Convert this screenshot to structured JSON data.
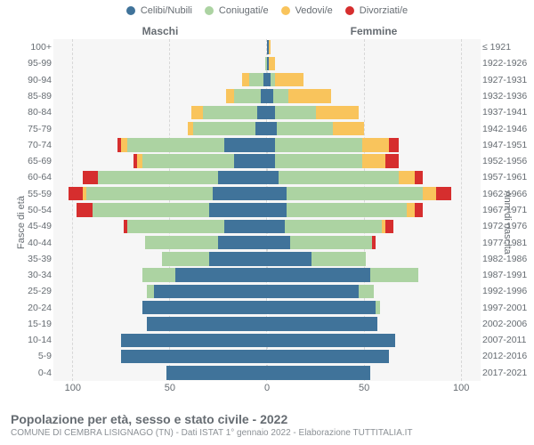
{
  "legend": [
    {
      "label": "Celibi/Nubili",
      "color": "#40739a"
    },
    {
      "label": "Coniugati/e",
      "color": "#acd3a2"
    },
    {
      "label": "Vedovi/e",
      "color": "#f9c45c"
    },
    {
      "label": "Divorziati/e",
      "color": "#d62e2e"
    }
  ],
  "sides": {
    "left": "Maschi",
    "right": "Femmine"
  },
  "yaxis_left_title": "Fasce di età",
  "yaxis_right_title": "Anni di nascita",
  "x_ticks_left": [
    100,
    50,
    0
  ],
  "x_ticks_right": [
    0,
    50,
    100
  ],
  "x_max": 110,
  "plot_bg": "#f6f6f6",
  "grid_color": "#d8d8d8",
  "text_color": "#666c72",
  "title": "Popolazione per età, sesso e stato civile - 2022",
  "subtitle": "COMUNE DI CEMBRA LISIGNAGO (TN) - Dati ISTAT 1° gennaio 2022 - Elaborazione TUTTITALIA.IT",
  "rows": [
    {
      "age": "100+",
      "birth": "≤ 1921",
      "m": {
        "single": 0,
        "married": 0,
        "widowed": 0,
        "divorced": 0
      },
      "f": {
        "single": 1,
        "married": 0,
        "widowed": 1,
        "divorced": 0
      }
    },
    {
      "age": "95-99",
      "birth": "1922-1926",
      "m": {
        "single": 0,
        "married": 1,
        "widowed": 0,
        "divorced": 0
      },
      "f": {
        "single": 1,
        "married": 0,
        "widowed": 3,
        "divorced": 0
      }
    },
    {
      "age": "90-94",
      "birth": "1927-1931",
      "m": {
        "single": 2,
        "married": 7,
        "widowed": 4,
        "divorced": 0
      },
      "f": {
        "single": 2,
        "married": 2,
        "widowed": 15,
        "divorced": 0
      }
    },
    {
      "age": "85-89",
      "birth": "1932-1936",
      "m": {
        "single": 3,
        "married": 14,
        "widowed": 4,
        "divorced": 0
      },
      "f": {
        "single": 3,
        "married": 8,
        "widowed": 22,
        "divorced": 0
      }
    },
    {
      "age": "80-84",
      "birth": "1937-1941",
      "m": {
        "single": 5,
        "married": 28,
        "widowed": 6,
        "divorced": 0
      },
      "f": {
        "single": 4,
        "married": 21,
        "widowed": 22,
        "divorced": 0
      }
    },
    {
      "age": "75-79",
      "birth": "1942-1946",
      "m": {
        "single": 6,
        "married": 32,
        "widowed": 3,
        "divorced": 0
      },
      "f": {
        "single": 5,
        "married": 29,
        "widowed": 16,
        "divorced": 0
      }
    },
    {
      "age": "70-74",
      "birth": "1947-1951",
      "m": {
        "single": 22,
        "married": 50,
        "widowed": 3,
        "divorced": 2
      },
      "f": {
        "single": 4,
        "married": 45,
        "widowed": 14,
        "divorced": 5
      }
    },
    {
      "age": "65-69",
      "birth": "1952-1956",
      "m": {
        "single": 17,
        "married": 47,
        "widowed": 3,
        "divorced": 2
      },
      "f": {
        "single": 4,
        "married": 45,
        "widowed": 12,
        "divorced": 7
      }
    },
    {
      "age": "60-64",
      "birth": "1957-1961",
      "m": {
        "single": 25,
        "married": 62,
        "widowed": 0,
        "divorced": 8
      },
      "f": {
        "single": 6,
        "married": 62,
        "widowed": 8,
        "divorced": 4
      }
    },
    {
      "age": "55-59",
      "birth": "1962-1966",
      "m": {
        "single": 28,
        "married": 65,
        "widowed": 2,
        "divorced": 7
      },
      "f": {
        "single": 10,
        "married": 70,
        "widowed": 7,
        "divorced": 8
      }
    },
    {
      "age": "50-54",
      "birth": "1967-1971",
      "m": {
        "single": 30,
        "married": 60,
        "widowed": 0,
        "divorced": 8
      },
      "f": {
        "single": 10,
        "married": 62,
        "widowed": 4,
        "divorced": 4
      }
    },
    {
      "age": "45-49",
      "birth": "1972-1976",
      "m": {
        "single": 22,
        "married": 50,
        "widowed": 0,
        "divorced": 2
      },
      "f": {
        "single": 9,
        "married": 50,
        "widowed": 2,
        "divorced": 4
      }
    },
    {
      "age": "40-44",
      "birth": "1977-1981",
      "m": {
        "single": 25,
        "married": 38,
        "widowed": 0,
        "divorced": 0
      },
      "f": {
        "single": 12,
        "married": 42,
        "widowed": 0,
        "divorced": 2
      }
    },
    {
      "age": "35-39",
      "birth": "1982-1986",
      "m": {
        "single": 30,
        "married": 24,
        "widowed": 0,
        "divorced": 0
      },
      "f": {
        "single": 23,
        "married": 28,
        "widowed": 0,
        "divorced": 0
      }
    },
    {
      "age": "30-34",
      "birth": "1987-1991",
      "m": {
        "single": 47,
        "married": 17,
        "widowed": 0,
        "divorced": 0
      },
      "f": {
        "single": 53,
        "married": 25,
        "widowed": 0,
        "divorced": 0
      }
    },
    {
      "age": "25-29",
      "birth": "1992-1996",
      "m": {
        "single": 58,
        "married": 4,
        "widowed": 0,
        "divorced": 0
      },
      "f": {
        "single": 47,
        "married": 8,
        "widowed": 0,
        "divorced": 0
      }
    },
    {
      "age": "20-24",
      "birth": "1997-2001",
      "m": {
        "single": 64,
        "married": 0,
        "widowed": 0,
        "divorced": 0
      },
      "f": {
        "single": 56,
        "married": 2,
        "widowed": 0,
        "divorced": 0
      }
    },
    {
      "age": "15-19",
      "birth": "2002-2006",
      "m": {
        "single": 62,
        "married": 0,
        "widowed": 0,
        "divorced": 0
      },
      "f": {
        "single": 57,
        "married": 0,
        "widowed": 0,
        "divorced": 0
      }
    },
    {
      "age": "10-14",
      "birth": "2007-2011",
      "m": {
        "single": 75,
        "married": 0,
        "widowed": 0,
        "divorced": 0
      },
      "f": {
        "single": 66,
        "married": 0,
        "widowed": 0,
        "divorced": 0
      }
    },
    {
      "age": "5-9",
      "birth": "2012-2016",
      "m": {
        "single": 75,
        "married": 0,
        "widowed": 0,
        "divorced": 0
      },
      "f": {
        "single": 63,
        "married": 0,
        "widowed": 0,
        "divorced": 0
      }
    },
    {
      "age": "0-4",
      "birth": "2017-2021",
      "m": {
        "single": 52,
        "married": 0,
        "widowed": 0,
        "divorced": 0
      },
      "f": {
        "single": 53,
        "married": 0,
        "widowed": 0,
        "divorced": 0
      }
    }
  ]
}
